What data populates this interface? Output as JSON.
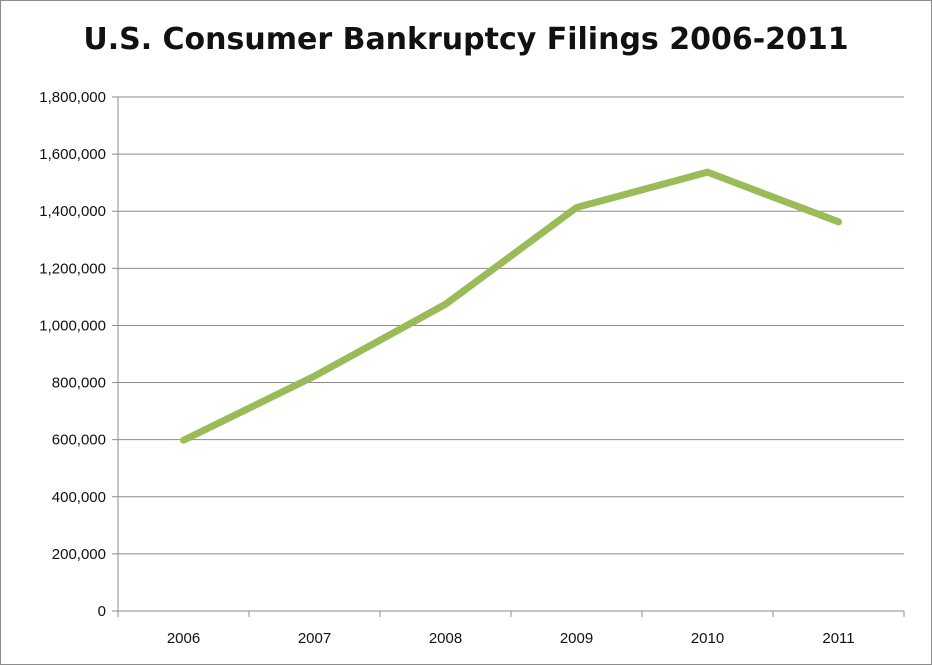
{
  "chart_data": {
    "type": "line",
    "title": "U.S. Consumer Bankruptcy Filings 2006-2011",
    "xlabel": "",
    "ylabel": "",
    "categories": [
      "2006",
      "2007",
      "2008",
      "2009",
      "2010",
      "2011"
    ],
    "series": [
      {
        "values": [
          597965,
          822590,
          1074225,
          1412838,
          1536799,
          1362847
        ]
      }
    ],
    "ylim": [
      0,
      1800000
    ],
    "yticks": [
      "0",
      "200,000",
      "400,000",
      "600,000",
      "800,000",
      "1,000,000",
      "1,200,000",
      "1,400,000",
      "1,600,000",
      "1,800,000"
    ],
    "grid": true,
    "legend": "none",
    "line_color": "#9BBB59",
    "gridline_color": "#8c8c8c"
  }
}
